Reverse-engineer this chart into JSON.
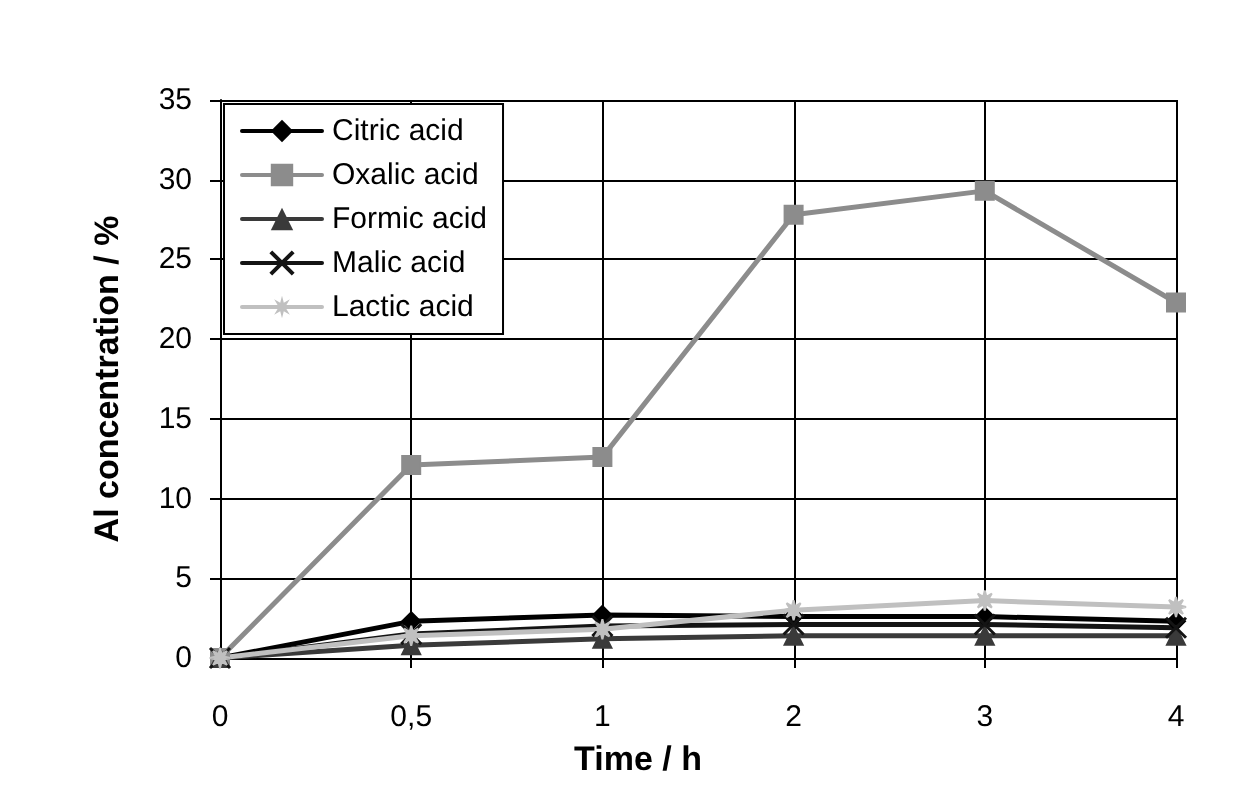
{
  "chart_data": {
    "type": "line",
    "xlabel": "Time / h",
    "ylabel": "Al concentration / %",
    "categories": [
      "0",
      "0,5",
      "1",
      "2",
      "3",
      "4"
    ],
    "ylim": [
      0,
      35
    ],
    "yticks": [
      0,
      5,
      10,
      15,
      20,
      25,
      30,
      35
    ],
    "grid": true,
    "legend": "top left",
    "series": [
      {
        "name": "Citric acid",
        "color": "#000000",
        "marker": "diamond",
        "values": [
          0,
          2.3,
          2.7,
          2.6,
          2.6,
          2.3
        ]
      },
      {
        "name": "Oxalic acid",
        "color": "#8c8c8c",
        "marker": "square",
        "values": [
          0,
          12.1,
          12.6,
          27.8,
          29.3,
          22.3
        ]
      },
      {
        "name": "Formic acid",
        "color": "#3a3a3a",
        "marker": "triangle",
        "values": [
          0,
          0.8,
          1.2,
          1.4,
          1.4,
          1.4
        ]
      },
      {
        "name": "Malic acid",
        "color": "#141414",
        "marker": "cross",
        "values": [
          0,
          1.5,
          2.0,
          2.1,
          2.1,
          1.9
        ]
      },
      {
        "name": "Lactic acid",
        "color": "#c0c0c0",
        "marker": "star",
        "values": [
          0,
          1.4,
          1.8,
          3.0,
          3.6,
          3.2
        ]
      }
    ]
  }
}
